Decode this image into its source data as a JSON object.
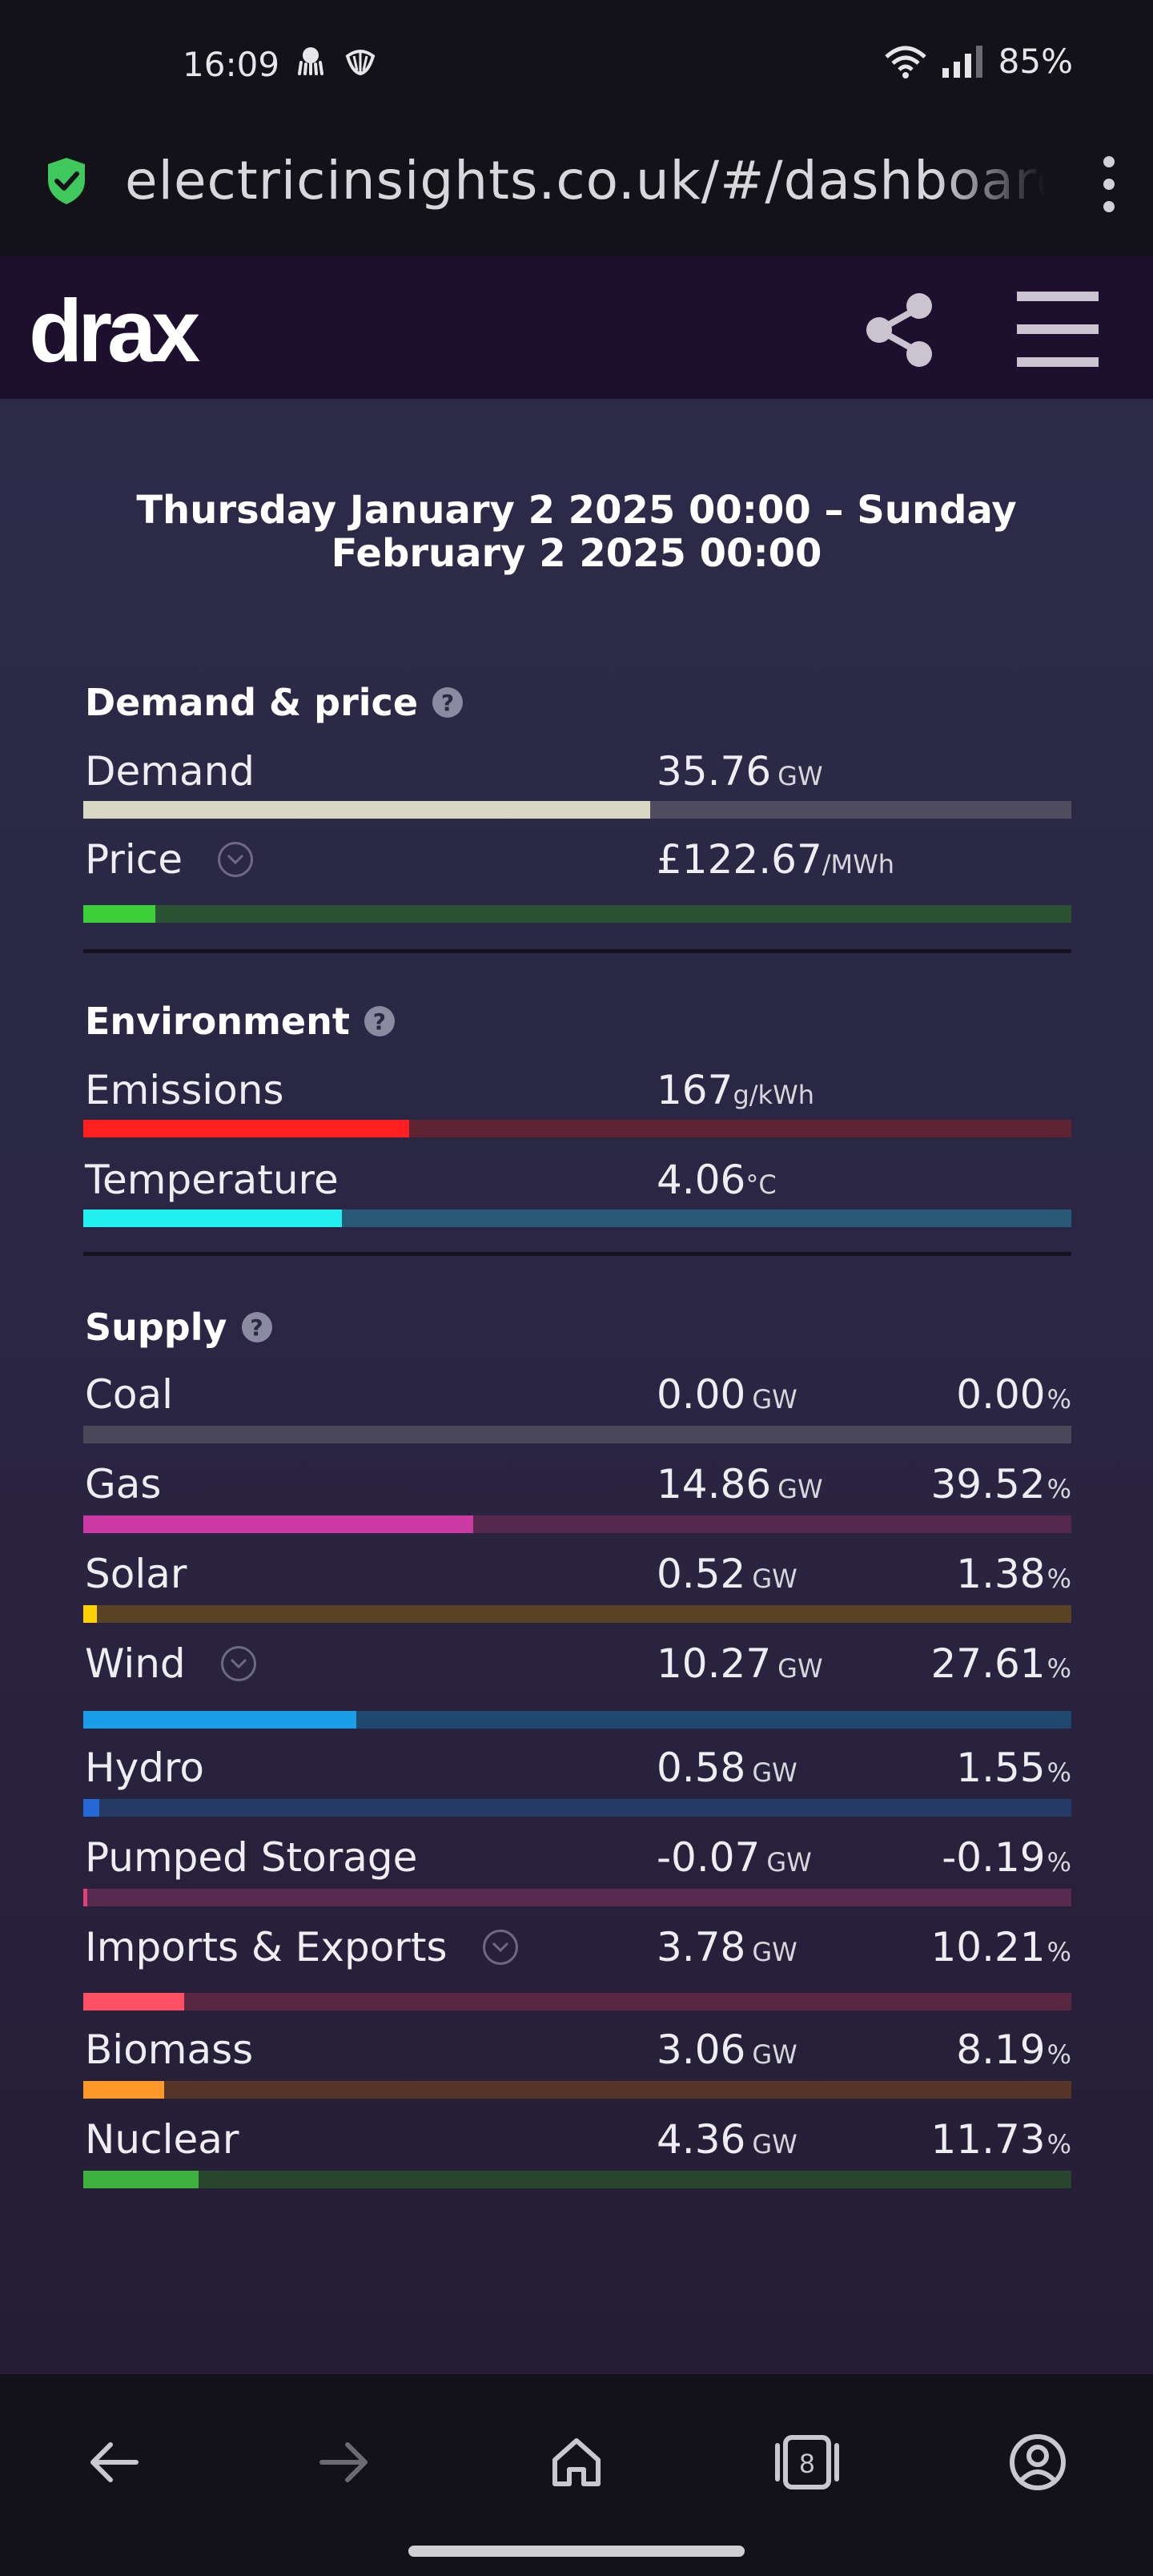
{
  "status": {
    "time": "16:09",
    "battery": "85%"
  },
  "browser": {
    "url": "electricinsights.co.uk/#/dashboard"
  },
  "header": {
    "logo": "drax"
  },
  "date_range": "Thursday January 2 2025 00:00 – Sunday February 2 2025 00:00",
  "sections": {
    "demand_price": {
      "title": "Demand & price",
      "demand": {
        "label": "Demand",
        "value": "35.76",
        "unit": "GW",
        "fill": 0.574,
        "color": "#d8d8c4",
        "track": "#4f4d5f"
      },
      "price": {
        "label": "Price",
        "value": "£122.67",
        "unit": "/MWh",
        "fill": 0.073,
        "color": "#3ccf39",
        "track": "#2b5232"
      }
    },
    "environment": {
      "title": "Environment",
      "emissions": {
        "label": "Emissions",
        "value": "167",
        "unit": "g/kWh",
        "fill": 0.33,
        "color": "#ff1f1f",
        "track": "#5e2434"
      },
      "temperature": {
        "label": "Temperature",
        "value": "4.06",
        "unit": "°C",
        "fill": 0.262,
        "color": "#22f0f0",
        "track": "#285a78"
      }
    },
    "supply": {
      "title": "Supply",
      "coal": {
        "label": "Coal",
        "value": "0.00",
        "unit": "GW",
        "pct": "0.00",
        "pct_unit": "%",
        "fill": 0.0,
        "color": "#6c6a78",
        "track": "#4b4959"
      },
      "gas": {
        "label": "Gas",
        "value": "14.86",
        "unit": "GW",
        "pct": "39.52",
        "pct_unit": "%",
        "fill": 0.395,
        "color": "#cc3ba4",
        "track": "#56284e"
      },
      "solar": {
        "label": "Solar",
        "value": "0.52",
        "unit": "GW",
        "pct": "1.38",
        "pct_unit": "%",
        "fill": 0.014,
        "color": "#ffd000",
        "track": "#5a4224"
      },
      "wind": {
        "label": "Wind",
        "value": "10.27",
        "unit": "GW",
        "pct": "27.61",
        "pct_unit": "%",
        "fill": 0.276,
        "color": "#1a9ee8",
        "track": "#20476e"
      },
      "hydro": {
        "label": "Hydro",
        "value": "0.58",
        "unit": "GW",
        "pct": "1.55",
        "pct_unit": "%",
        "fill": 0.016,
        "color": "#2468d6",
        "track": "#263a66"
      },
      "pumped_storage": {
        "label": "Pumped Storage",
        "value": "-0.07",
        "unit": "GW",
        "pct": "-0.19",
        "pct_unit": "%",
        "fill": 0.004,
        "color": "#e0407a",
        "track": "#582a4e"
      },
      "imports_exports": {
        "label": "Imports & Exports",
        "value": "3.78",
        "unit": "GW",
        "pct": "10.21",
        "pct_unit": "%",
        "fill": 0.102,
        "color": "#ff4f62",
        "track": "#5a2742"
      },
      "biomass": {
        "label": "Biomass",
        "value": "3.06",
        "unit": "GW",
        "pct": "8.19",
        "pct_unit": "%",
        "fill": 0.082,
        "color": "#ff9a2a",
        "track": "#553628"
      },
      "nuclear": {
        "label": "Nuclear",
        "value": "4.36",
        "unit": "GW",
        "pct": "11.73",
        "pct_unit": "%",
        "fill": 0.117,
        "color": "#3cb23c",
        "track": "#28452e"
      }
    }
  },
  "nav": {
    "tab_count": "8"
  }
}
